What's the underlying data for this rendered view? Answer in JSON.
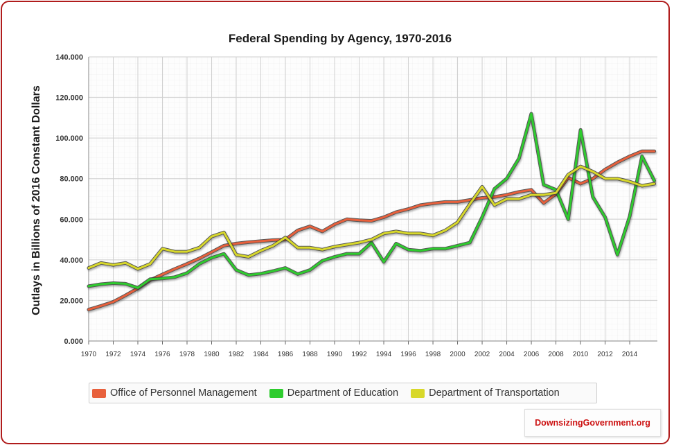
{
  "chart_data": {
    "type": "line",
    "title": "Federal Spending by Agency, 1970-2016",
    "xlabel": "",
    "ylabel": "Outlays in Billions of 2016 Constant Dollars",
    "x": [
      1970,
      1971,
      1972,
      1973,
      1974,
      1975,
      1976,
      1977,
      1978,
      1979,
      1980,
      1981,
      1982,
      1983,
      1984,
      1985,
      1986,
      1987,
      1988,
      1989,
      1990,
      1991,
      1992,
      1993,
      1994,
      1995,
      1996,
      1997,
      1998,
      1999,
      2000,
      2001,
      2002,
      2003,
      2004,
      2005,
      2006,
      2007,
      2008,
      2009,
      2010,
      2011,
      2012,
      2013,
      2014,
      2015,
      2016
    ],
    "xlim": [
      1970,
      2016
    ],
    "x_tick_labels": [
      "1970",
      "1972",
      "1974",
      "1976",
      "1978",
      "1980",
      "1982",
      "1984",
      "1986",
      "1988",
      "1990",
      "1992",
      "1994",
      "1996",
      "1998",
      "2000",
      "2002",
      "2004",
      "2006",
      "2008",
      "2010",
      "2012",
      "2014"
    ],
    "ylim": [
      0,
      140
    ],
    "y_tick_labels": [
      "0.000",
      "20.000",
      "40.000",
      "60.000",
      "80.000",
      "100.000",
      "120.000",
      "140.000"
    ],
    "grid": true,
    "legend_position": "bottom",
    "series": [
      {
        "name": "Office of Personnel Management",
        "color": "#e8603c",
        "values": [
          15.5,
          17.3,
          19.3,
          22.5,
          26.0,
          30.0,
          32.8,
          35.5,
          38.0,
          40.7,
          43.8,
          47.0,
          48.0,
          48.7,
          49.2,
          49.7,
          50.0,
          54.5,
          56.5,
          54.0,
          57.5,
          60.0,
          59.5,
          59.2,
          61.0,
          63.5,
          65.0,
          67.0,
          67.8,
          68.5,
          68.5,
          69.5,
          70.5,
          71.0,
          72.0,
          73.5,
          74.5,
          68.0,
          72.5,
          80.5,
          77.5,
          80.0,
          84.5,
          88.0,
          91.0,
          93.5,
          93.5
        ]
      },
      {
        "name": "Department of Education",
        "color": "#2ecc2e",
        "values": [
          27.0,
          28.0,
          28.5,
          28.2,
          26.2,
          30.5,
          30.8,
          31.5,
          33.5,
          38.0,
          41.0,
          43.0,
          35.0,
          32.5,
          33.2,
          34.5,
          36.0,
          33.0,
          35.0,
          39.5,
          41.5,
          43.0,
          43.0,
          48.5,
          39.0,
          48.0,
          45.0,
          44.5,
          45.5,
          45.5,
          47.0,
          48.5,
          61.0,
          75.0,
          80.0,
          90.0,
          112.0,
          77.0,
          74.5,
          60.0,
          104.0,
          71.0,
          61.0,
          42.5,
          61.5,
          91.0,
          79.0
        ]
      },
      {
        "name": "Department of Transportation",
        "color": "#d8d82a",
        "values": [
          36.0,
          38.5,
          37.5,
          38.5,
          35.5,
          38.0,
          45.5,
          44.0,
          44.0,
          46.0,
          51.5,
          53.5,
          42.5,
          41.5,
          44.5,
          47.0,
          51.0,
          46.0,
          46.0,
          45.0,
          46.5,
          47.5,
          48.5,
          50.0,
          53.0,
          54.0,
          53.0,
          53.0,
          52.0,
          54.5,
          58.5,
          67.5,
          76.0,
          67.0,
          70.0,
          70.0,
          72.0,
          72.0,
          73.0,
          82.0,
          86.0,
          83.5,
          80.0,
          80.0,
          78.5,
          76.5,
          77.5
        ]
      }
    ]
  },
  "watermark": "DownsizingGovernment.org"
}
